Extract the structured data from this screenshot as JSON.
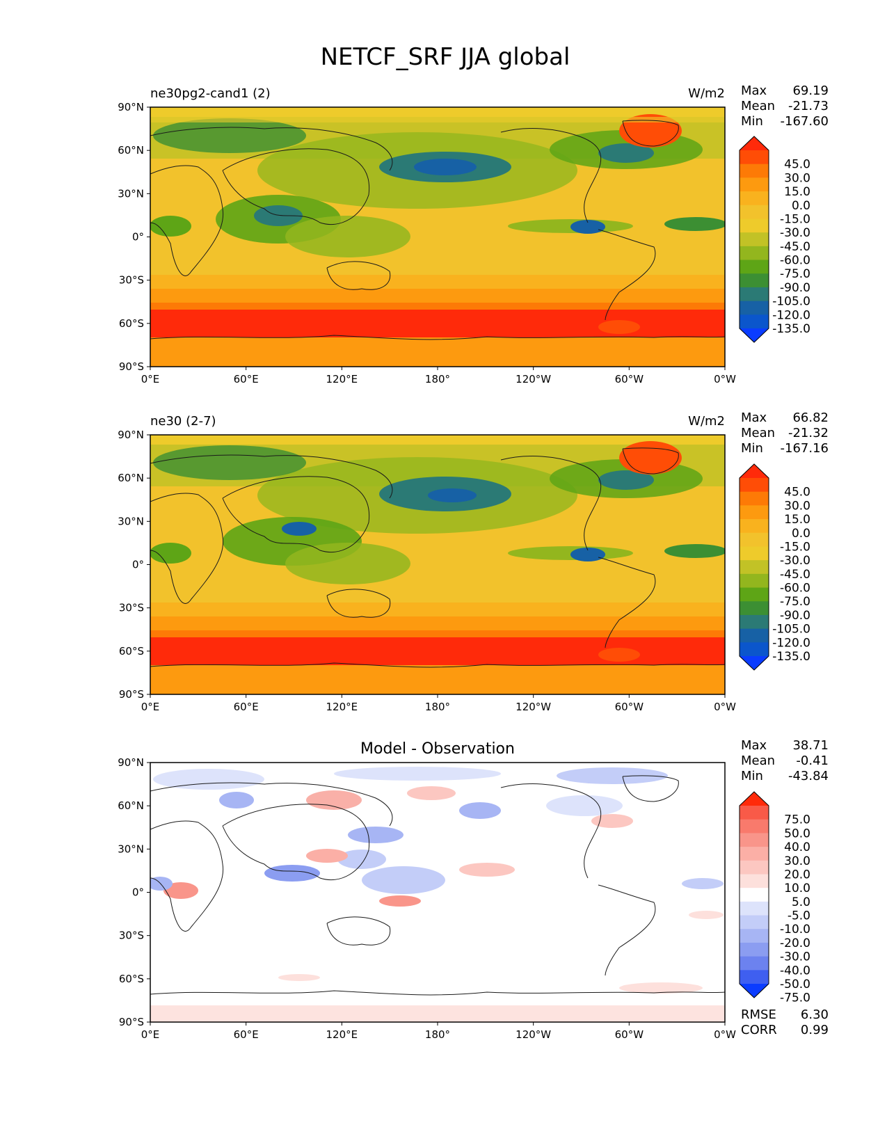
{
  "figure": {
    "title": "NETCF_SRF JJA global"
  },
  "axes": {
    "y_labels": [
      "90°N",
      "60°N",
      "30°N",
      "0°",
      "30°S",
      "60°S",
      "90°S"
    ],
    "x_labels": [
      "0°E",
      "60°E",
      "120°E",
      "180°",
      "120°W",
      "60°W",
      "0°W"
    ]
  },
  "panels": [
    {
      "id": "test",
      "left_title": "ne30pg2-cand1 (2)",
      "center_title": "",
      "units": "W/m2",
      "stats": [
        {
          "label": "Max",
          "value": "69.19"
        },
        {
          "label": "Mean",
          "value": "-21.73"
        },
        {
          "label": "Min",
          "value": "-167.60"
        }
      ],
      "colorbar": {
        "levels": [
          "45.0",
          "30.0",
          "15.0",
          "0.0",
          "-15.0",
          "-30.0",
          "-45.0",
          "-60.0",
          "-75.0",
          "-90.0",
          "-105.0",
          "-120.0",
          "-135.0"
        ],
        "colors": [
          "#ff2a0a",
          "#ff4d06",
          "#fd7a06",
          "#fd9a0f",
          "#f9b21e",
          "#f2c22c",
          "#eecb2b",
          "#c2c226",
          "#93b61e",
          "#5ea516",
          "#3c8f33",
          "#2b7a75",
          "#1761a5",
          "#0b56cc",
          "#0a3cff"
        ]
      },
      "regions": {
        "antarctic_band": "#ff2a0a",
        "southern_ocean": "#fd7a06",
        "north_pacific_storm": "#2b7a75",
        "greenland": "#ff4d06",
        "itcz": "#93b61e",
        "panama": "#1761a5"
      },
      "stats_extra": []
    },
    {
      "id": "ref",
      "left_title": "ne30 (2-7)",
      "center_title": "",
      "units": "W/m2",
      "stats": [
        {
          "label": "Max",
          "value": "66.82"
        },
        {
          "label": "Mean",
          "value": "-21.32"
        },
        {
          "label": "Min",
          "value": "-167.16"
        }
      ],
      "colorbar": {
        "levels": [
          "45.0",
          "30.0",
          "15.0",
          "0.0",
          "-15.0",
          "-30.0",
          "-45.0",
          "-60.0",
          "-75.0",
          "-90.0",
          "-105.0",
          "-120.0",
          "-135.0"
        ],
        "colors": [
          "#ff2a0a",
          "#ff4d06",
          "#fd7a06",
          "#fd9a0f",
          "#f9b21e",
          "#f2c22c",
          "#eecb2b",
          "#c2c226",
          "#93b61e",
          "#5ea516",
          "#3c8f33",
          "#2b7a75",
          "#1761a5",
          "#0b56cc",
          "#0a3cff"
        ]
      },
      "regions": {
        "antarctic_band": "#ff2a0a",
        "southern_ocean": "#fd7a06",
        "north_pacific_storm": "#2b7a75",
        "greenland": "#ff4d06",
        "itcz": "#93b61e",
        "panama": "#1761a5"
      },
      "stats_extra": []
    },
    {
      "id": "diff",
      "left_title": "",
      "center_title": "Model - Observation",
      "units": "",
      "stats": [
        {
          "label": "Max",
          "value": "38.71"
        },
        {
          "label": "Mean",
          "value": "-0.41"
        },
        {
          "label": "Min",
          "value": "-43.84"
        }
      ],
      "colorbar": {
        "levels": [
          "75.0",
          "50.0",
          "40.0",
          "30.0",
          "20.0",
          "10.0",
          "5.0",
          "-5.0",
          "-10.0",
          "-20.0",
          "-30.0",
          "-40.0",
          "-50.0",
          "-75.0"
        ],
        "colors": [
          "#ff2a0a",
          "#f95a48",
          "#f97a6c",
          "#f9958a",
          "#fbafa6",
          "#fcc7c1",
          "#fde0dc",
          "#ffffff",
          "#dde3fb",
          "#c3cdf8",
          "#a7b5f4",
          "#8b9df1",
          "#6c82ef",
          "#3f5ff0",
          "#0b3cff"
        ]
      },
      "regions": {
        "blue_patch": "#a7b5f4",
        "red_patch": "#f9b0a8",
        "light_blue": "#dde3fb",
        "light_red": "#fde0dc"
      },
      "stats_extra": [
        {
          "label": "RMSE",
          "value": "6.30"
        },
        {
          "label": "CORR",
          "value": "0.99"
        }
      ]
    }
  ]
}
